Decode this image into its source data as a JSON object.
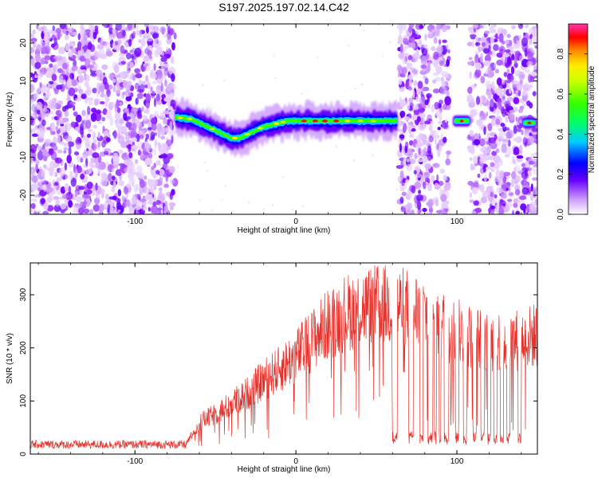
{
  "title": "S197.2025.197.02.14.C42",
  "chart_data": [
    {
      "type": "heatmap",
      "xlabel": "Height of straight line (km)",
      "ylabel": "Frequency (Hz)",
      "xlim": [
        -165,
        150
      ],
      "ylim": [
        -25,
        25
      ],
      "x_ticks": [
        -100,
        0,
        100
      ],
      "y_ticks": [
        -20,
        -10,
        0,
        10,
        20
      ],
      "colorbar": {
        "label": "Normalized spectral amplitude",
        "range": [
          0,
          0.95
        ],
        "ticks": [
          0.0,
          0.2,
          0.4,
          0.6,
          0.8
        ]
      },
      "ridge": {
        "x": [
          -75,
          -65,
          -55,
          -45,
          -40,
          -35,
          -30,
          -25,
          -20,
          -15,
          -10,
          -5,
          0,
          10,
          20,
          30,
          40,
          50,
          55,
          63
        ],
        "y": [
          0.5,
          0,
          -2,
          -4,
          -5,
          -5,
          -4,
          -3,
          -2,
          -1.5,
          -1,
          -0.5,
          -0.5,
          -0.5,
          -0.5,
          -0.5,
          -0.5,
          -0.5,
          -0.5,
          -0.5
        ]
      },
      "isolated_tones": [
        {
          "x_range": [
            98,
            108
          ],
          "y": -0.5
        },
        {
          "x_range": [
            141,
            149
          ],
          "y": -1
        }
      ],
      "noise_regions": [
        [
          -165,
          -75
        ],
        [
          64,
          95
        ],
        [
          108,
          150
        ]
      ]
    },
    {
      "type": "line",
      "xlabel": "Height of straight line (km)",
      "ylabel": "SNR (10 * v/v)",
      "xlim": [
        -165,
        150
      ],
      "ylim": [
        0,
        360
      ],
      "x_ticks": [
        -100,
        0,
        100
      ],
      "y_ticks": [
        0,
        100,
        200,
        300
      ],
      "color": "#e8302a",
      "envelope_x": [
        -165,
        -68,
        -60,
        -50,
        -40,
        -30,
        -20,
        -10,
        0,
        10,
        20,
        30,
        40,
        50,
        60,
        70,
        80,
        90,
        100,
        110,
        120,
        130,
        140,
        150
      ],
      "envelope_y": [
        18,
        18,
        60,
        75,
        95,
        115,
        140,
        160,
        185,
        215,
        245,
        265,
        275,
        280,
        280,
        275,
        265,
        245,
        230,
        220,
        210,
        215,
        215,
        225
      ],
      "dropouts": [
        [
          60,
          63
        ],
        [
          70,
          73
        ],
        [
          77,
          79
        ],
        [
          82,
          85
        ],
        [
          86,
          87
        ],
        [
          89,
          90
        ],
        [
          92,
          95
        ],
        [
          99,
          101
        ],
        [
          104,
          106
        ],
        [
          110,
          112
        ],
        [
          115,
          117
        ],
        [
          119,
          121
        ],
        [
          123,
          125
        ],
        [
          127,
          129
        ],
        [
          131,
          133
        ],
        [
          138,
          140
        ]
      ],
      "dropout_level": 30
    }
  ]
}
